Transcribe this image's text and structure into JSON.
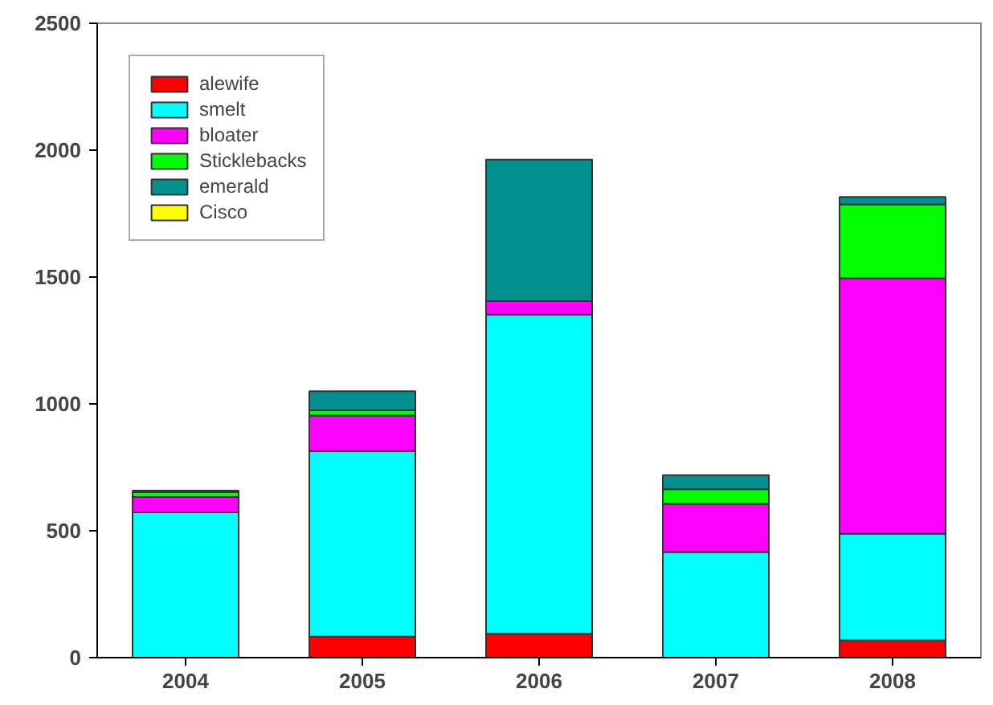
{
  "chart_data": {
    "type": "bar",
    "stacked": true,
    "categories": [
      "2004",
      "2005",
      "2006",
      "2007",
      "2008"
    ],
    "series": [
      {
        "name": "alewife",
        "color": "#ff0000",
        "values": [
          0,
          83,
          94,
          0,
          68
        ]
      },
      {
        "name": "smelt",
        "color": "#00ffff",
        "values": [
          573,
          731,
          1258,
          416,
          420
        ]
      },
      {
        "name": "bloater",
        "color": "#ff00ff",
        "values": [
          60,
          140,
          53,
          190,
          1007
        ]
      },
      {
        "name": "Sticklebacks",
        "color": "#00ff00",
        "values": [
          20,
          21,
          0,
          58,
          291
        ]
      },
      {
        "name": "emerald",
        "color": "#009090",
        "values": [
          5,
          75,
          558,
          55,
          30
        ]
      },
      {
        "name": "Cisco",
        "color": "#ffff00",
        "values": [
          0,
          0,
          0,
          0,
          0
        ]
      }
    ],
    "ylim": [
      0,
      2500
    ],
    "yticks": [
      0,
      500,
      1000,
      1500,
      2000,
      2500
    ],
    "grid": false,
    "legend": "top left"
  }
}
